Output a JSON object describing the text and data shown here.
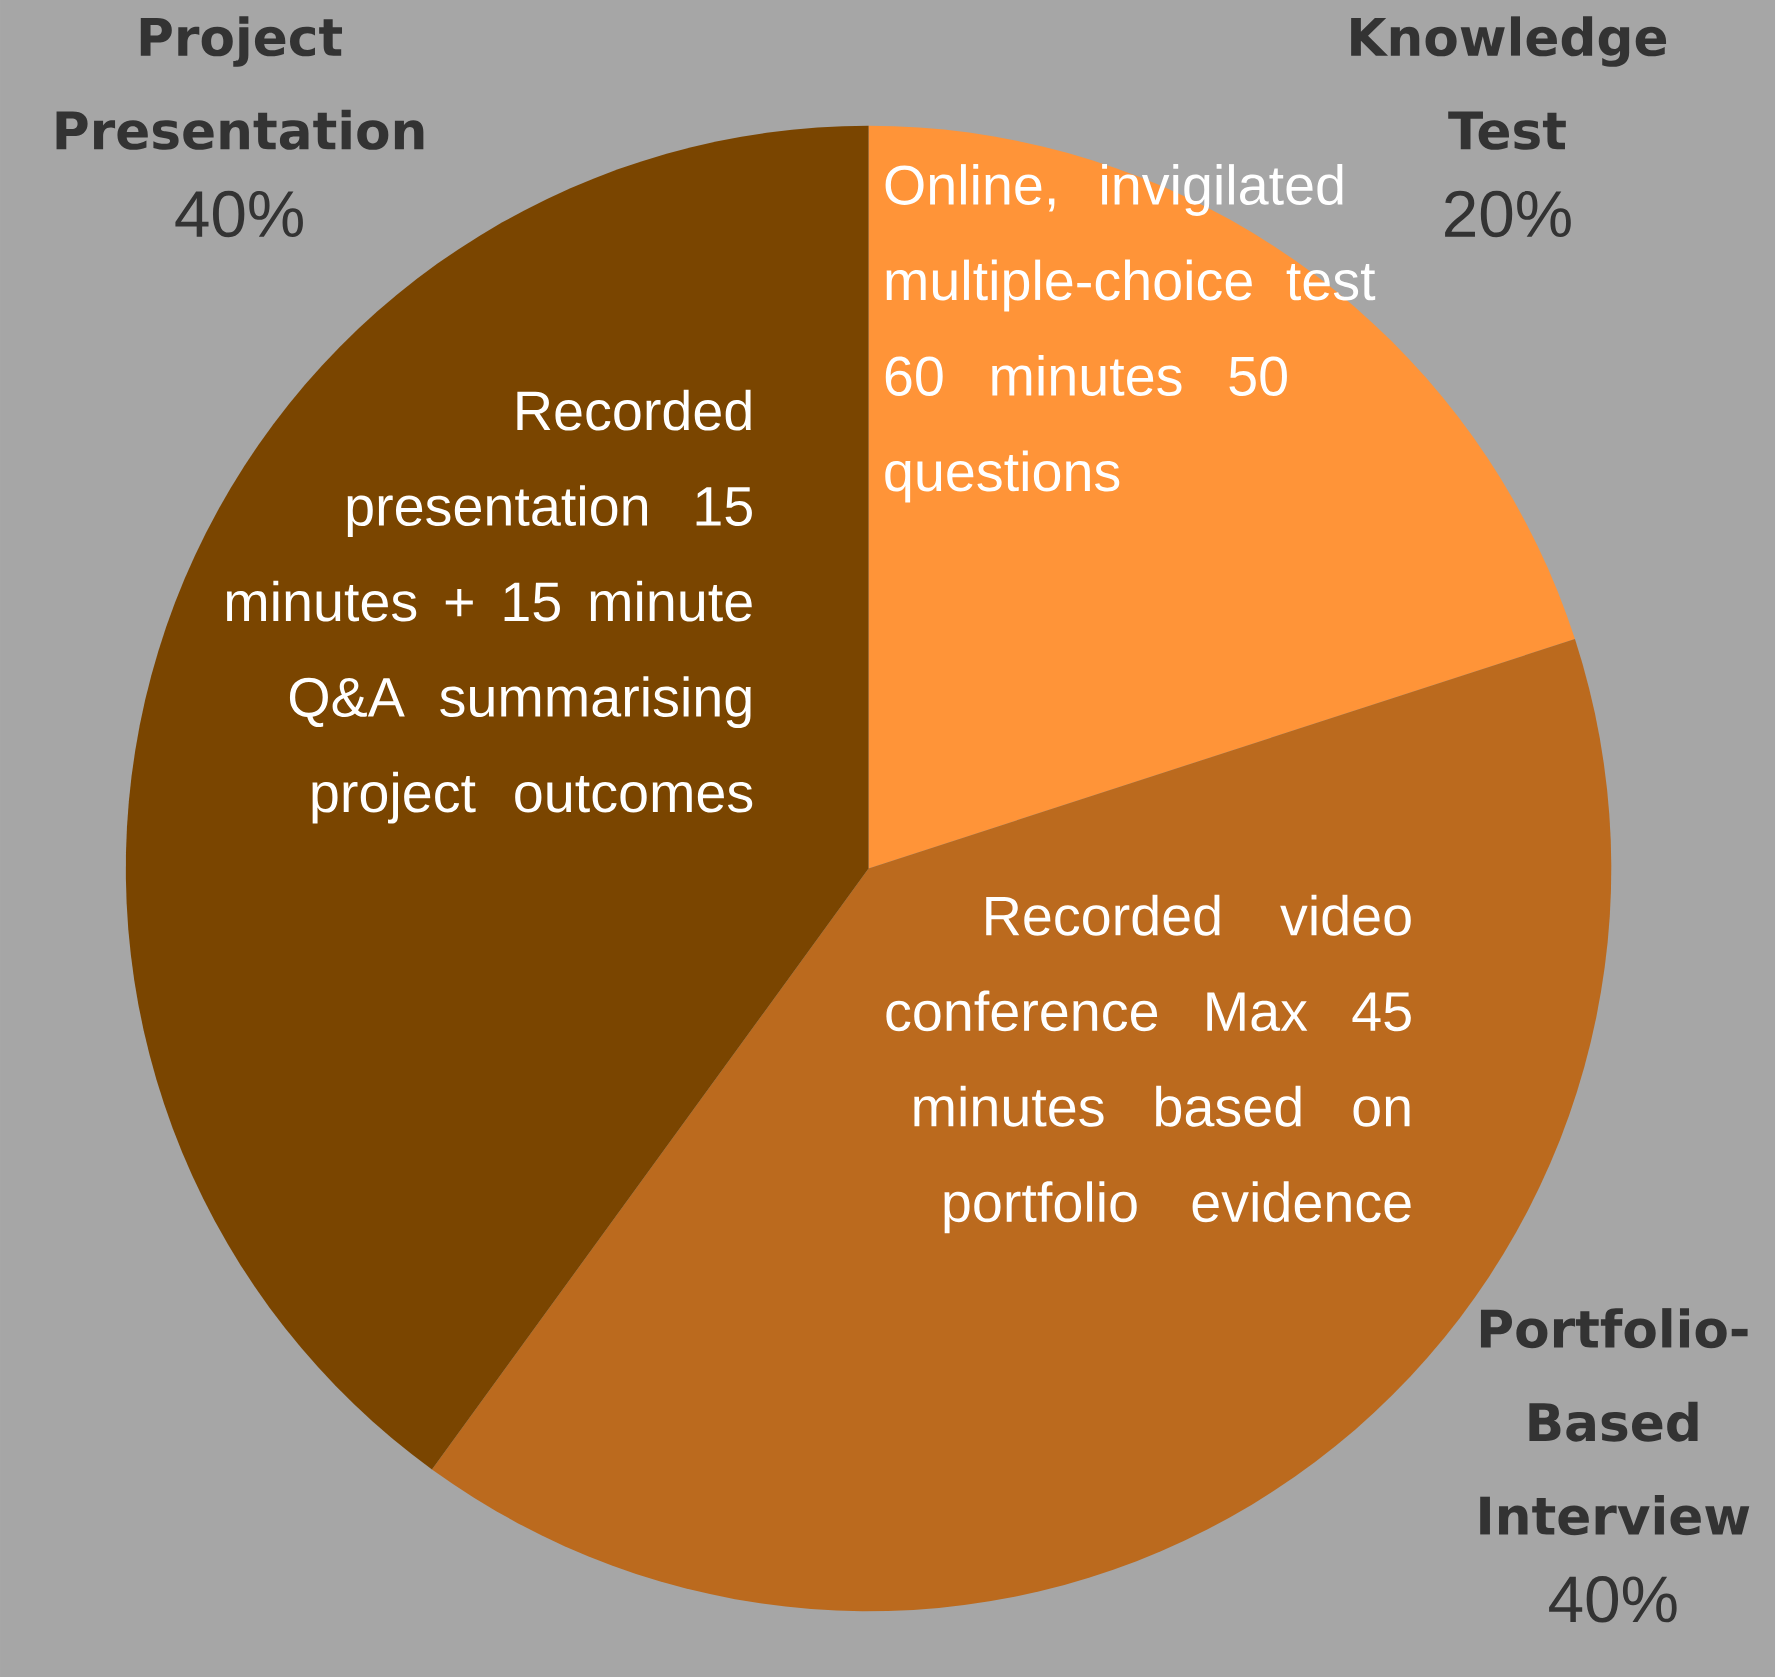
{
  "chart_data": {
    "type": "pie",
    "categories": [
      "Knowledge Test",
      "Portfolio-Based Interview",
      "Project Presentation"
    ],
    "values": [
      20,
      40,
      40
    ],
    "value_labels": [
      "20%",
      "40%",
      "40%"
    ],
    "colors": [
      "#ff9438",
      "#bb6a1e",
      "#7a4500"
    ],
    "annotations": [
      "Online, invigilated multiple-choice test 60 minutes 50 questions",
      "Recorded video conference Max 45 minutes based on portfolio evidence",
      "Recorded presentation 15 minutes + 15 minute Q&A summarising project outcomes"
    ]
  }
}
